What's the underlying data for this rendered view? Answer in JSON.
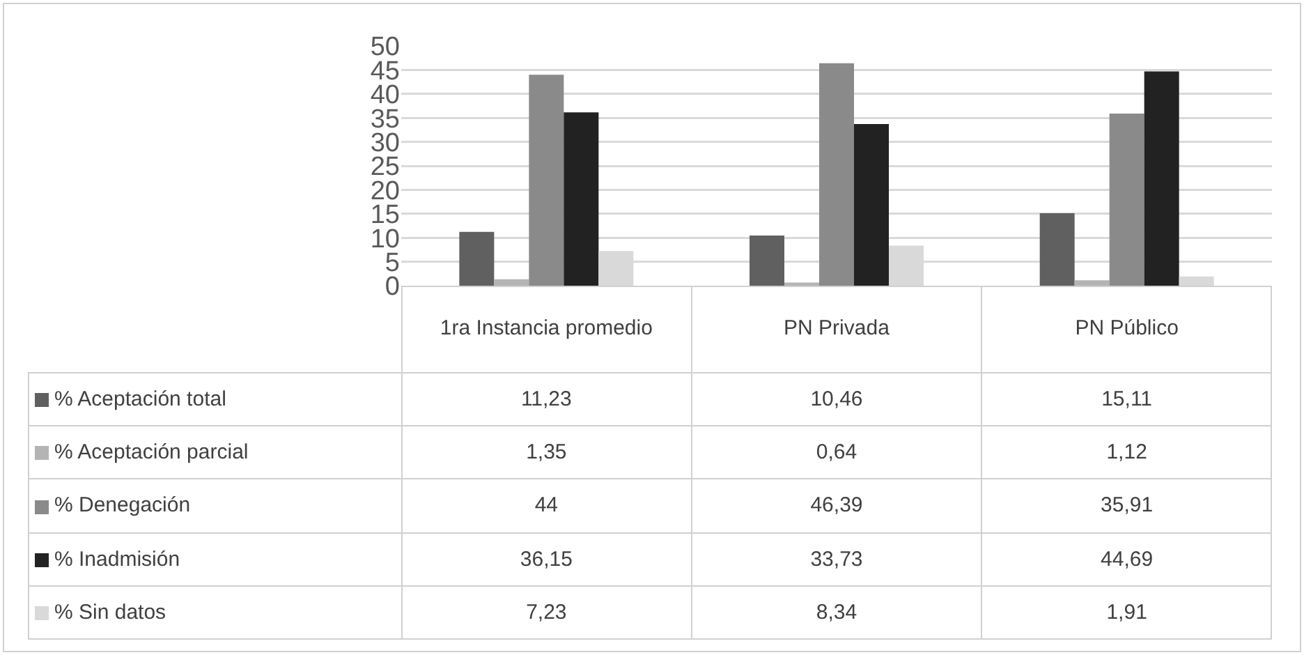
{
  "chart_data": {
    "type": "bar",
    "categories": [
      "1ra Instancia promedio",
      "PN Privada",
      "PN Público"
    ],
    "series": [
      {
        "name": "% Aceptación total",
        "color": "#606060",
        "values": [
          11.23,
          10.46,
          15.11
        ],
        "value_labels": [
          "11,23",
          "10,46",
          "15,11"
        ]
      },
      {
        "name": "% Aceptación parcial",
        "color": "#b4b4b4",
        "values": [
          1.35,
          0.64,
          1.12
        ],
        "value_labels": [
          "1,35",
          "0,64",
          "1,12"
        ]
      },
      {
        "name": "% Denegación",
        "color": "#8a8a8a",
        "values": [
          44,
          46.39,
          35.91
        ],
        "value_labels": [
          "44",
          "46,39",
          "35,91"
        ]
      },
      {
        "name": "% Inadmisión",
        "color": "#222222",
        "values": [
          36.15,
          33.73,
          44.69
        ],
        "value_labels": [
          "36,15",
          "33,73",
          "44,69"
        ]
      },
      {
        "name": "% Sin datos",
        "color": "#d9d9d9",
        "values": [
          7.23,
          8.34,
          1.91
        ],
        "value_labels": [
          "7,23",
          "8,34",
          "1,91"
        ]
      }
    ],
    "ylim": [
      0,
      50
    ],
    "yticks": [
      0,
      5,
      10,
      15,
      20,
      25,
      30,
      35,
      40,
      45,
      50
    ],
    "grid": "y",
    "legend": "bottom"
  }
}
